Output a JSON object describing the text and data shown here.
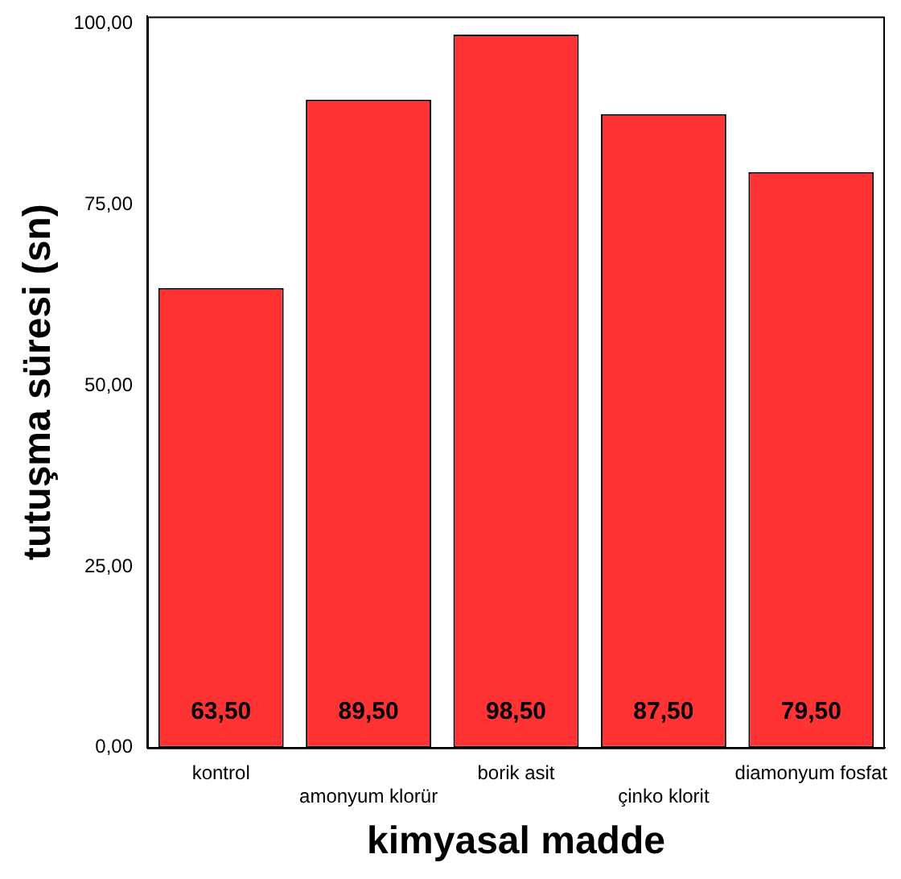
{
  "chart_data": {
    "type": "bar",
    "xlabel": "kimyasal madde",
    "ylabel": "tutuşma süresi (sn)",
    "categories": [
      "kontrol",
      "amonyum klorür",
      "borik asit",
      "çinko klorit",
      "diamonyum fosfat"
    ],
    "values": [
      63.5,
      89.5,
      98.5,
      87.5,
      79.5
    ],
    "value_labels": [
      "63,50",
      "89,50",
      "98,50",
      "87,50",
      "79,50"
    ],
    "color": "#ff3333",
    "ylim": [
      0,
      101
    ],
    "yticks": [
      {
        "value": 0,
        "label": "0,00"
      },
      {
        "value": 25,
        "label": "25,00"
      },
      {
        "value": 50,
        "label": "50,00"
      },
      {
        "value": 75,
        "label": "75,00"
      },
      {
        "value": 100,
        "label": "100,00"
      }
    ],
    "grid": false,
    "legend": false
  }
}
